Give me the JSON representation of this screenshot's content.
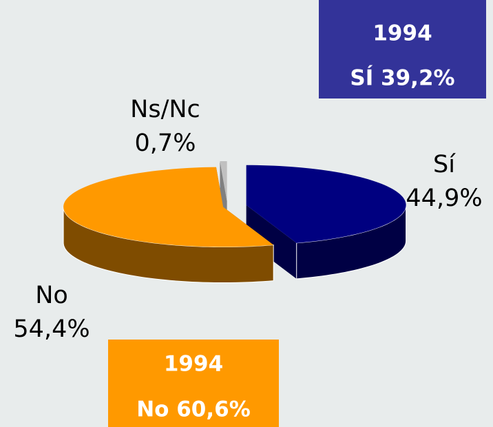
{
  "chart_data": {
    "type": "pie",
    "categories": [
      "Sí",
      "No",
      "Ns/Nc"
    ],
    "values": [
      44.9,
      54.4,
      0.7
    ],
    "value_labels": [
      "44,9%",
      "54,4%",
      "0,7%"
    ],
    "colors": [
      "#000080",
      "#ff9900",
      "#c0c0c0"
    ],
    "side_colors": [
      "#000044",
      "#7f4c00",
      "#808080"
    ],
    "annotations": [
      {
        "lines": [
          "1994",
          "SÍ 39,2%"
        ],
        "color": "#333399"
      },
      {
        "lines": [
          "1994",
          "No 60,6%"
        ],
        "color": "#ff9900"
      }
    ]
  }
}
